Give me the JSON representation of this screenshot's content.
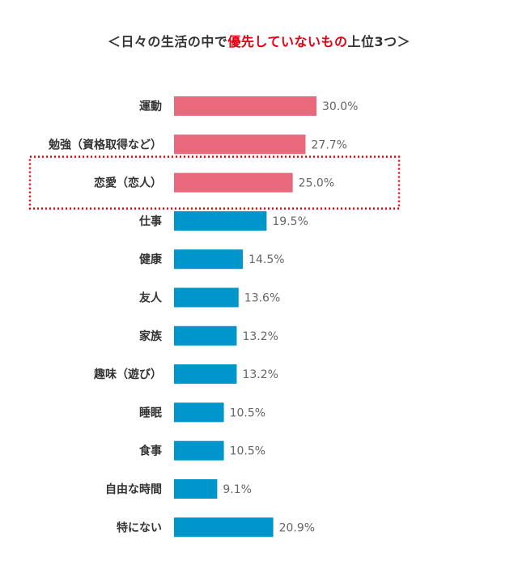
{
  "title": {
    "prefix": "＜日々の生活の中で",
    "highlight": "優先していないもの",
    "suffix": "上位3つ＞"
  },
  "chart_data": {
    "type": "bar",
    "orientation": "horizontal",
    "categories": [
      "運動",
      "勉強（資格取得など）",
      "恋愛（恋人）",
      "仕事",
      "健康",
      "友人",
      "家族",
      "趣味（遊び）",
      "睡眠",
      "食事",
      "自由な時間",
      "特にない"
    ],
    "values": [
      30.0,
      27.7,
      25.0,
      19.5,
      14.5,
      13.6,
      13.2,
      13.2,
      10.5,
      10.5,
      9.1,
      20.9
    ],
    "value_labels": [
      "30.0%",
      "27.7%",
      "25.0%",
      "19.5%",
      "14.5%",
      "13.6%",
      "13.2%",
      "13.2%",
      "10.5%",
      "10.5%",
      "9.1%",
      "20.9%"
    ],
    "highlighted_top": 3,
    "boxed_category": "恋愛（恋人）",
    "colors": {
      "top": "#e8697b",
      "other": "#0096cc",
      "highlight_text": "#e60012",
      "box": "#e60012"
    },
    "xlim": [
      0,
      30
    ],
    "gridlines": false,
    "legend": "none"
  }
}
